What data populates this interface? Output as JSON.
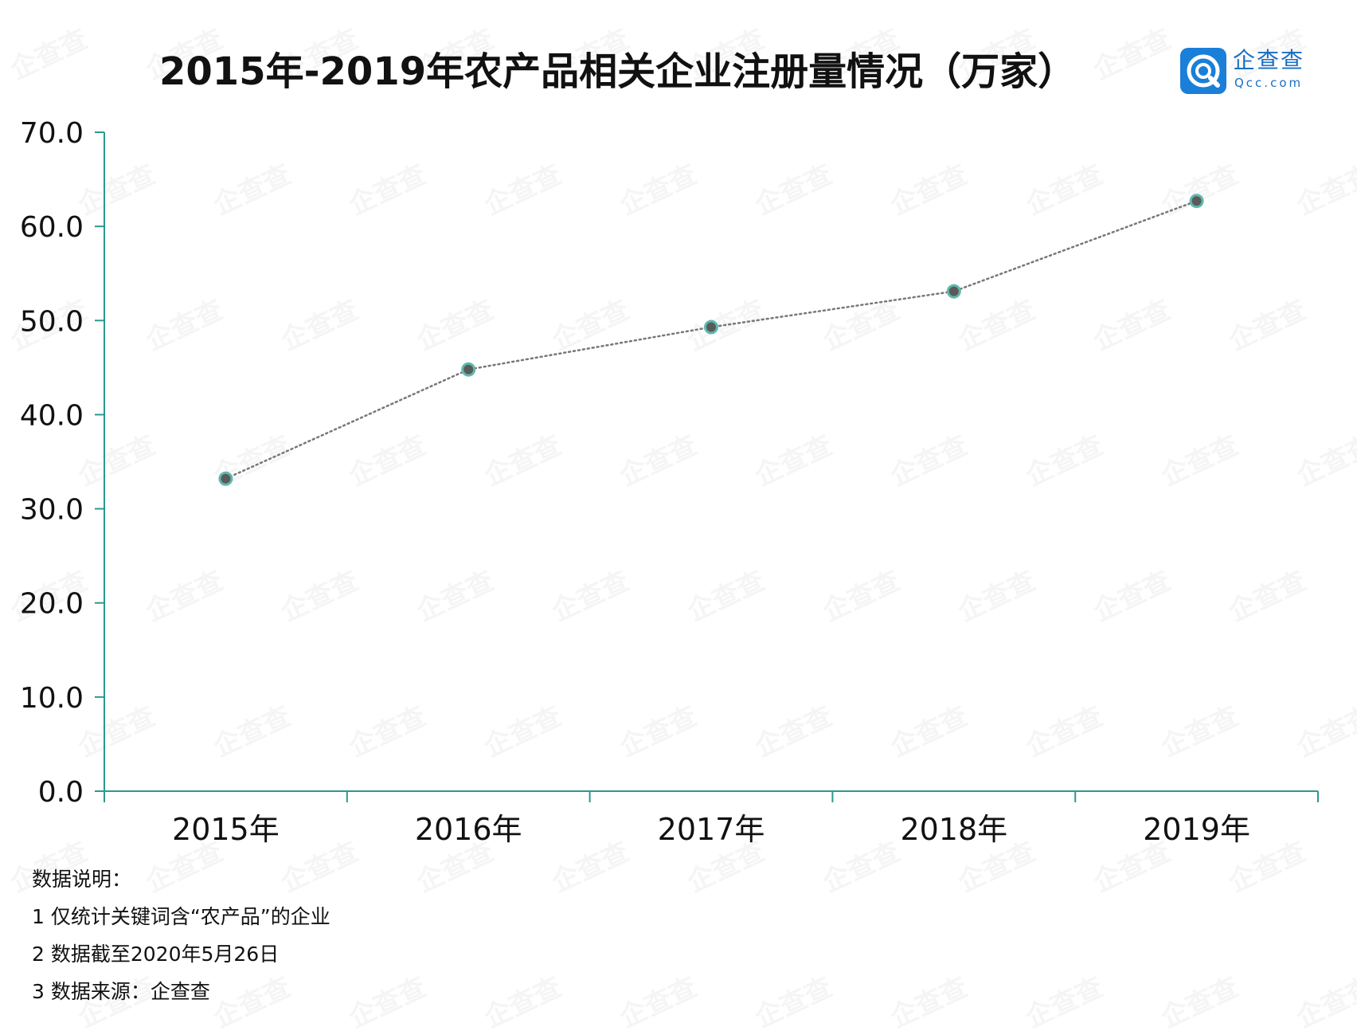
{
  "title": "2015年-2019年农产品相关企业注册量情况（万家）",
  "logo": {
    "name": "企查查",
    "url": "Qcc.com",
    "watermark_text": "企查查"
  },
  "colors": {
    "axis": "#2a9a8e",
    "line": "#777777",
    "marker_fill": "#5a5a5a",
    "marker_ring": "#5fb8ad",
    "logo": "#1a7fd8"
  },
  "chart_data": {
    "type": "line",
    "title": "2015年-2019年农产品相关企业注册量情况（万家）",
    "categories": [
      "2015年",
      "2016年",
      "2017年",
      "2018年",
      "2019年"
    ],
    "series": [
      {
        "values": [
          33.2,
          44.8,
          49.3,
          53.1,
          62.7
        ]
      }
    ],
    "y_ticks": [
      "0.0",
      "10.0",
      "20.0",
      "30.0",
      "40.0",
      "50.0",
      "60.0",
      "70.0"
    ],
    "ylim": [
      0,
      70
    ],
    "xlabel": "",
    "ylabel": "",
    "grid": false,
    "legend": "none",
    "line_style": "dotted"
  },
  "notes": {
    "heading": "数据说明：",
    "items": [
      "1 仅统计关键词含“农产品”的企业",
      "2 数据截至2020年5月26日",
      "3 数据来源：企查查"
    ]
  }
}
